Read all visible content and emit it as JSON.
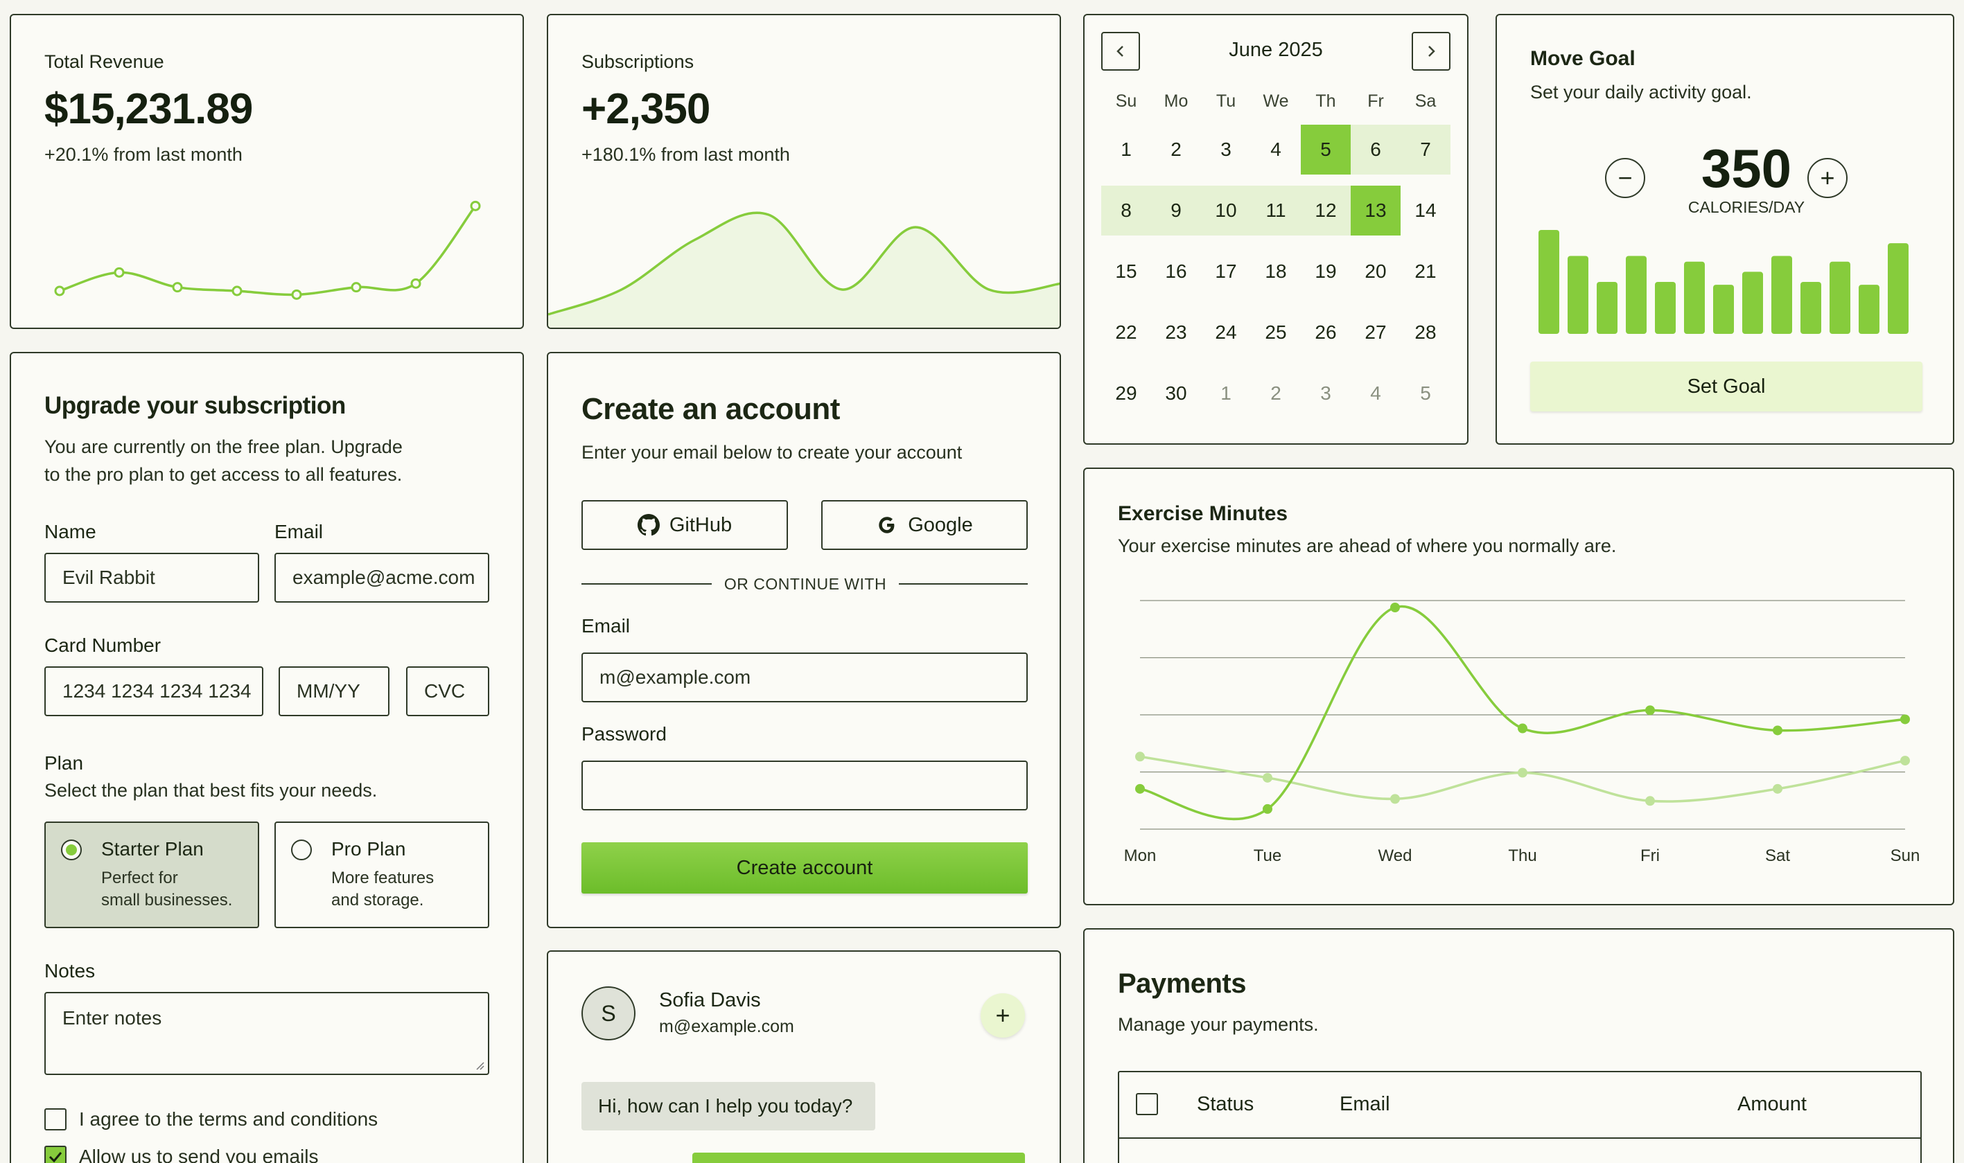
{
  "revenue": {
    "title": "Total Revenue",
    "value": "$15,231.89",
    "change": "+20.1% from last month",
    "series": [
      12,
      22,
      14,
      12,
      10,
      14,
      16,
      58
    ]
  },
  "subscriptions": {
    "title": "Subscriptions",
    "value": "+2,350",
    "change": "+180.1% from last month",
    "series": [
      10,
      30,
      70,
      90,
      30,
      80,
      30,
      35
    ]
  },
  "calendar": {
    "month_label": "June 2025",
    "prev_icon": "chevron-left-icon",
    "next_icon": "chevron-right-icon",
    "weekdays": [
      "Su",
      "Mo",
      "Tu",
      "We",
      "Th",
      "Fr",
      "Sa"
    ],
    "weeks": [
      [
        "1",
        "2",
        "3",
        "4",
        "5",
        "6",
        "7"
      ],
      [
        "8",
        "9",
        "10",
        "11",
        "12",
        "13",
        "14"
      ],
      [
        "15",
        "16",
        "17",
        "18",
        "19",
        "20",
        "21"
      ],
      [
        "22",
        "23",
        "24",
        "25",
        "26",
        "27",
        "28"
      ],
      [
        "29",
        "30",
        "1",
        "2",
        "3",
        "4",
        "5"
      ]
    ],
    "range_start": "5",
    "range_end": "13"
  },
  "move_goal": {
    "title": "Move Goal",
    "subtitle": "Set your daily activity goal.",
    "value": "350",
    "unit": "CALORIES/DAY",
    "decrease_symbol": "−",
    "increase_symbol": "+",
    "bars": [
      400,
      300,
      200,
      300,
      200,
      278,
      189,
      239,
      300,
      200,
      278,
      189,
      349
    ],
    "button": "Set Goal"
  },
  "upgrade": {
    "title": "Upgrade your subscription",
    "description_1": "You are currently on the free plan. Upgrade",
    "description_2": "to the pro plan to get access to all features.",
    "name_label": "Name",
    "name_value": "Evil Rabbit",
    "email_label": "Email",
    "email_value": "example@acme.com",
    "card_label": "Card Number",
    "card_value": "1234 1234 1234 1234",
    "expiry_placeholder": "MM/YY",
    "cvc_placeholder": "CVC",
    "plan_label": "Plan",
    "plan_hint": "Select the plan that best fits your needs.",
    "plans": [
      {
        "name": "Starter Plan",
        "desc_1": "Perfect for",
        "desc_2": "small businesses.",
        "selected": true
      },
      {
        "name": "Pro Plan",
        "desc_1": "More features",
        "desc_2": "and storage.",
        "selected": false
      }
    ],
    "notes_label": "Notes",
    "notes_placeholder": "Enter notes",
    "terms_label": "I agree to the terms and conditions",
    "emails_label": "Allow us to send you emails"
  },
  "create_account": {
    "title": "Create an account",
    "subtitle": "Enter your email below to create your account",
    "github": "GitHub",
    "google": "Google",
    "divider": "OR CONTINUE WITH",
    "email_label": "Email",
    "email_placeholder": "m@example.com",
    "password_label": "Password",
    "button": "Create account"
  },
  "chat": {
    "avatar_initial": "S",
    "name": "Sofia Davis",
    "email": "m@example.com",
    "add_symbol": "+",
    "message": "Hi, how can I help you today?"
  },
  "exercise": {
    "title": "Exercise Minutes",
    "subtitle": "Your exercise minutes are ahead of where you normally are."
  },
  "payments": {
    "title": "Payments",
    "subtitle": "Manage your payments.",
    "columns": [
      "Status",
      "Email",
      "Amount"
    ]
  },
  "chart_data": {
    "type": "line",
    "categories": [
      "Mon",
      "Tue",
      "Wed",
      "Thu",
      "Fri",
      "Sat",
      "Sun"
    ],
    "series": [
      {
        "values": [
          240,
          220,
          420,
          300,
          318,
          298,
          309
        ],
        "color": "#86cc3c"
      },
      {
        "values": [
          272,
          251,
          230,
          256,
          228,
          240,
          268
        ],
        "color": "#bfe29a"
      }
    ],
    "ylim": [
      200,
      420
    ],
    "grid": true
  },
  "colors": {
    "accent": "#86cc3c",
    "accent_light": "#e6f2d4",
    "border": "#2f3a28"
  }
}
